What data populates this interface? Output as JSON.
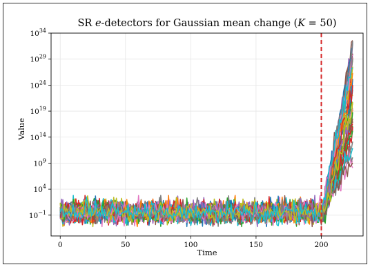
{
  "chart_data": {
    "type": "line",
    "title": "SR e-detectors for Gaussian mean change (K = 50)",
    "title_parts": {
      "prefix": "SR ",
      "italic": "e",
      "middle": "-detectors for Gaussian mean change (",
      "var": "K",
      "suffix": " = 50)"
    },
    "xlabel": "Time",
    "ylabel": "Value",
    "y_scale": "log10",
    "xlim": [
      -7,
      232
    ],
    "ylim_log10": [
      -5,
      34
    ],
    "x_ticks": [
      0,
      50,
      100,
      150,
      200
    ],
    "y_ticks": [
      {
        "base": "10",
        "exp": "34"
      },
      {
        "base": "10",
        "exp": "29"
      },
      {
        "base": "10",
        "exp": "24"
      },
      {
        "base": "10",
        "exp": "19"
      },
      {
        "base": "10",
        "exp": "14"
      },
      {
        "base": "10",
        "exp": "9"
      },
      {
        "base": "10",
        "exp": "4"
      },
      {
        "base": "10",
        "exp": "−1"
      }
    ],
    "y_tick_values_log10": [
      34,
      29,
      24,
      19,
      14,
      9,
      4,
      -1
    ],
    "grid": true,
    "changepoint": 200,
    "changepoint_color": "#d62728",
    "n_series": 50,
    "series_length": 225,
    "pre_change_level_log10": -0.5,
    "final_value_range_log10": [
      10,
      32
    ],
    "colors": [
      "#1f77b4",
      "#ff7f0e",
      "#2ca02c",
      "#d62728",
      "#9467bd",
      "#8c564b",
      "#e377c2",
      "#7f7f7f",
      "#bcbd22",
      "#17becf"
    ]
  }
}
